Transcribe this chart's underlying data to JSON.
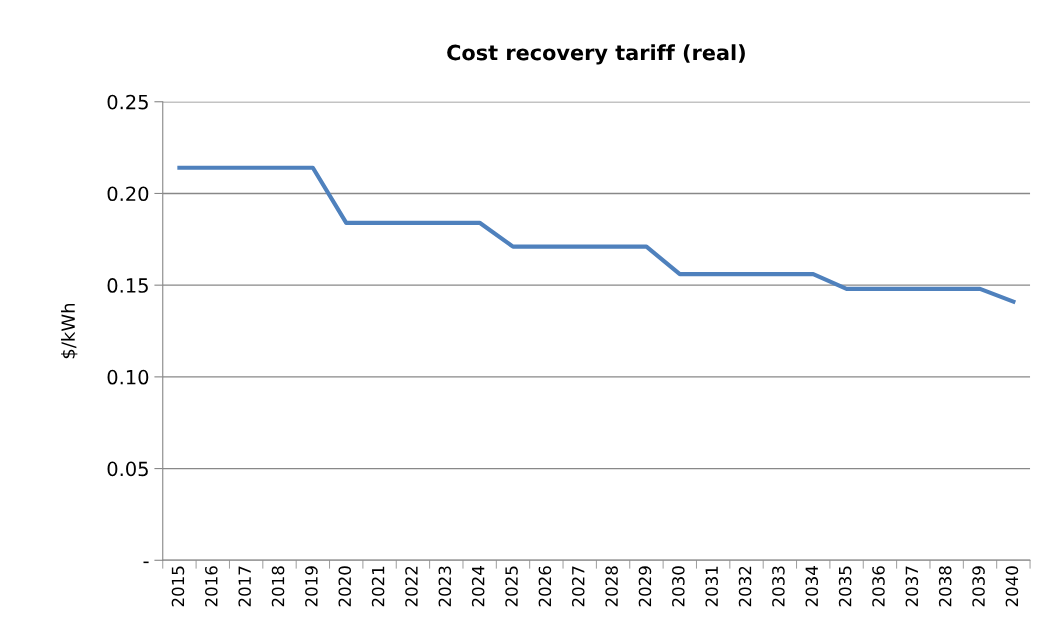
{
  "chart_data": {
    "type": "line",
    "title": "Cost recovery tariff (real)",
    "ylabel": "$/kWh",
    "categories": [
      "2015",
      "2016",
      "2017",
      "2018",
      "2019",
      "2020",
      "2021",
      "2022",
      "2023",
      "2024",
      "2025",
      "2026",
      "2027",
      "2028",
      "2029",
      "2030",
      "2031",
      "2032",
      "2033",
      "2034",
      "2035",
      "2036",
      "2037",
      "2038",
      "2039",
      "2040"
    ],
    "series": [
      {
        "color": "#4f81bd",
        "values": [
          0.214,
          0.214,
          0.214,
          0.214,
          0.214,
          0.184,
          0.184,
          0.184,
          0.184,
          0.184,
          0.171,
          0.171,
          0.171,
          0.171,
          0.171,
          0.156,
          0.156,
          0.156,
          0.156,
          0.156,
          0.148,
          0.148,
          0.148,
          0.148,
          0.148,
          0.141
        ]
      }
    ],
    "ylim": [
      0,
      0.25
    ],
    "yticks": [
      {
        "value": 0,
        "label": "-"
      },
      {
        "value": 0.05,
        "label": "0.05"
      },
      {
        "value": 0.1,
        "label": "0.10"
      },
      {
        "value": 0.15,
        "label": "0.15"
      },
      {
        "value": 0.2,
        "label": "0.20"
      },
      {
        "value": 0.25,
        "label": "0.25"
      }
    ],
    "grid": "y",
    "marker": "none",
    "line_style": "solid"
  }
}
